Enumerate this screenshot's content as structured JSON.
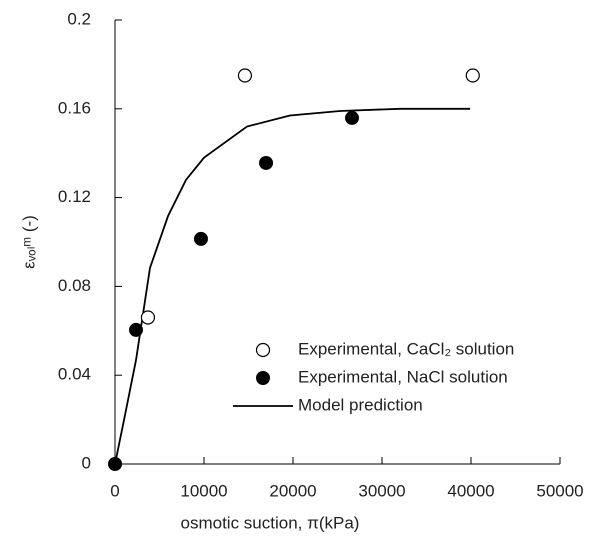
{
  "chart_data": {
    "type": "scatter",
    "xlabel": "osmotic suction, π(kPa)",
    "ylabel": "εᵥₒₗᵐ (-)",
    "xlim": [
      0,
      50000
    ],
    "xticks": [
      0,
      10000,
      20000,
      30000,
      40000,
      50000
    ],
    "ylim": [
      0,
      0.2
    ],
    "yticks": [
      0,
      0.04,
      0.08,
      0.12,
      0.16,
      0.2
    ],
    "legend": "lower right",
    "series": [
      {
        "name": "Experimental, CaCl₂ solution",
        "style": "open-circle",
        "color": "#000000",
        "x": [
          3700,
          14600,
          40200
        ],
        "values": [
          0.066,
          0.175,
          0.175
        ]
      },
      {
        "name": "Experimental, NaCl solution",
        "style": "filled-circle",
        "color": "#000000",
        "x": [
          0,
          2360,
          9660,
          16970,
          26630
        ],
        "values": [
          0,
          0.0604,
          0.1014,
          0.1356,
          0.1559
        ]
      },
      {
        "name": "Model prediction",
        "style": "line",
        "color": "#000000",
        "x": [
          0,
          900,
          2360,
          3930,
          5960,
          7980,
          10000,
          14830,
          19660,
          25280,
          32000,
          39900
        ],
        "values": [
          0,
          0.0176,
          0.0468,
          0.0883,
          0.1117,
          0.128,
          0.138,
          0.152,
          0.157,
          0.159,
          0.16,
          0.16
        ]
      }
    ]
  }
}
